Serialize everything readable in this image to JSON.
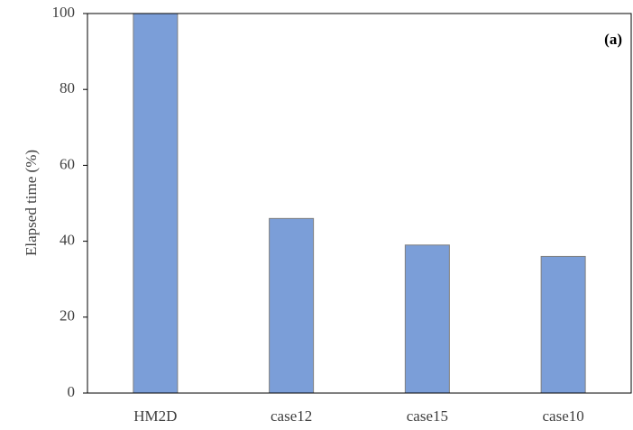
{
  "chart_data": {
    "type": "bar",
    "annotation": "(a)",
    "y_label": "Elapsed time (%)",
    "categories": [
      "HM2D",
      "case12",
      "case15",
      "case10"
    ],
    "values": [
      100,
      46,
      39,
      36
    ],
    "color": "#7b9ed8",
    "ylim": [
      0,
      100
    ],
    "yticks": [
      0,
      20,
      40,
      60,
      80,
      100
    ],
    "grid": false
  }
}
